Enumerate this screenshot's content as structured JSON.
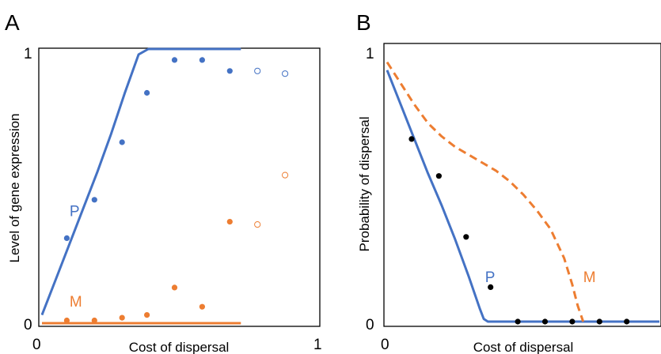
{
  "colors": {
    "P": "#4472C4",
    "M": "#ED7D31",
    "points_B": "#000000",
    "frame": "#000000"
  },
  "chart_data": [
    {
      "panel": "A",
      "type": "line",
      "xlabel": "Cost of dispersal",
      "ylabel": "Level of gene expression",
      "xlim": [
        0,
        1
      ],
      "ylim": [
        0,
        1
      ],
      "xticks": [
        "0",
        "1"
      ],
      "yticks": [
        "0",
        "1"
      ],
      "series": [
        {
          "name": "P",
          "kind": "line",
          "x": [
            0.0,
            0.05,
            0.1,
            0.15,
            0.2,
            0.25,
            0.3,
            0.35,
            0.385,
            0.4,
            0.45,
            0.5,
            0.55,
            0.6,
            0.65,
            0.7,
            0.72
          ],
          "y": [
            0.03,
            0.16,
            0.29,
            0.42,
            0.55,
            0.69,
            0.84,
            0.98,
            1.0,
            1.0,
            1.0,
            1.0,
            1.0,
            1.0,
            1.0,
            1.0,
            1.0
          ]
        },
        {
          "name": "M",
          "kind": "line",
          "x": [
            0.0,
            0.72
          ],
          "y": [
            0.0,
            0.0
          ]
        },
        {
          "name": "P",
          "kind": "points",
          "filled": true,
          "x": [
            0.09,
            0.19,
            0.29,
            0.38,
            0.48,
            0.58,
            0.68
          ],
          "y": [
            0.31,
            0.45,
            0.66,
            0.84,
            0.96,
            0.96,
            0.92
          ]
        },
        {
          "name": "P",
          "kind": "points",
          "filled": false,
          "x": [
            0.78,
            0.88
          ],
          "y": [
            0.92,
            0.91
          ]
        },
        {
          "name": "M",
          "kind": "points",
          "filled": true,
          "x": [
            0.09,
            0.19,
            0.29,
            0.38,
            0.48,
            0.58,
            0.68
          ],
          "y": [
            0.01,
            0.01,
            0.02,
            0.03,
            0.13,
            0.06,
            0.37
          ]
        },
        {
          "name": "M",
          "kind": "points",
          "filled": false,
          "x": [
            0.78,
            0.88
          ],
          "y": [
            0.36,
            0.54
          ]
        }
      ],
      "labels": [
        {
          "text": "P",
          "series": "P"
        },
        {
          "text": "M",
          "series": "M"
        }
      ]
    },
    {
      "panel": "B",
      "type": "line",
      "xlabel": "Cost of dispersal",
      "ylabel": "Probability of dispersal",
      "xlim": [
        0,
        1
      ],
      "ylim": [
        0,
        1
      ],
      "xticks": [
        "0"
      ],
      "yticks": [
        "0",
        "1"
      ],
      "series": [
        {
          "name": "P",
          "kind": "line",
          "dash": "solid",
          "x": [
            0.0,
            0.05,
            0.1,
            0.15,
            0.2,
            0.25,
            0.3,
            0.34,
            0.355,
            0.37,
            1.0
          ],
          "y": [
            0.95,
            0.82,
            0.69,
            0.56,
            0.44,
            0.31,
            0.17,
            0.05,
            0.01,
            0.0,
            0.0
          ]
        },
        {
          "name": "M",
          "kind": "line",
          "dash": "dashed",
          "x": [
            0.0,
            0.05,
            0.1,
            0.15,
            0.2,
            0.25,
            0.3,
            0.35,
            0.4,
            0.45,
            0.5,
            0.55,
            0.6,
            0.65,
            0.68,
            0.7,
            0.72
          ],
          "y": [
            0.98,
            0.9,
            0.82,
            0.75,
            0.7,
            0.66,
            0.63,
            0.6,
            0.57,
            0.53,
            0.48,
            0.42,
            0.35,
            0.24,
            0.14,
            0.06,
            0.0
          ]
        },
        {
          "name": "",
          "kind": "points",
          "filled": true,
          "x": [
            0.09,
            0.19,
            0.29,
            0.38,
            0.48,
            0.58,
            0.68,
            0.78,
            0.88
          ],
          "y": [
            0.69,
            0.55,
            0.32,
            0.13,
            0.0,
            0.0,
            0.0,
            0.0,
            0.0
          ]
        }
      ],
      "labels": [
        {
          "text": "P",
          "series": "P"
        },
        {
          "text": "M",
          "series": "M"
        }
      ]
    }
  ]
}
